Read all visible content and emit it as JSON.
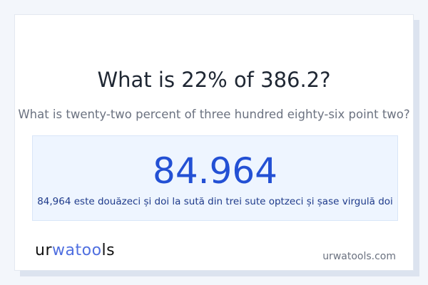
{
  "header": {
    "title": "What is 22% of 386.2?",
    "subtitle": "What is twenty-two percent of three hundred eighty-six point two?"
  },
  "result": {
    "value": "84.964",
    "words": "84,964 este douăzeci și doi la sută din trei sute optzeci și șase virgulă doi"
  },
  "footer": {
    "logo": "urwatools",
    "logo_parts": [
      "ur",
      "w",
      "at",
      "oo",
      "ls"
    ],
    "site": "urwatools.com"
  },
  "colors": {
    "accent": "#2350d4",
    "result_bg": "#eef5ff",
    "logo_accent": "#4f6fe0"
  }
}
